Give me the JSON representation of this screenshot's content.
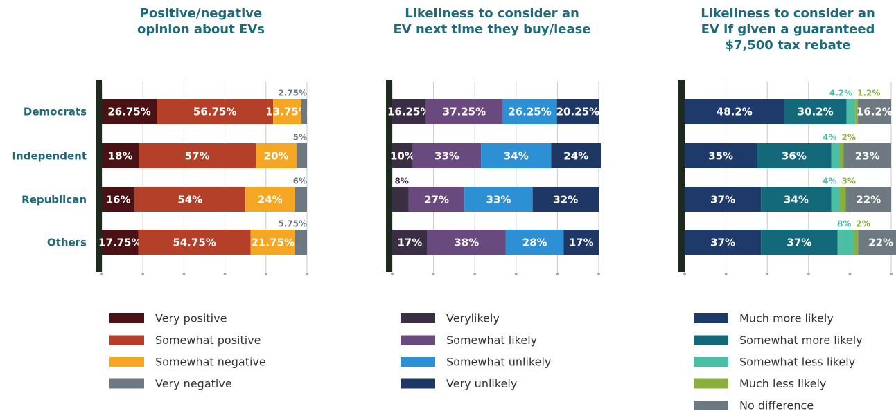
{
  "chart_data": [
    {
      "type": "stacked-bar",
      "title": "Positive/negative\nopinion about EVs",
      "categories": [
        "Democrats",
        "Independent",
        "Republican",
        "Others"
      ],
      "xlim": [
        0,
        100
      ],
      "xticks": [
        0,
        20,
        40,
        60,
        80,
        100
      ],
      "grid": true,
      "series": [
        {
          "name": "Very positive",
          "color": "#4a1214",
          "values": [
            26.75,
            18,
            16,
            17.75
          ],
          "value_labels": [
            "26.75%",
            "18%",
            "16%",
            "17.75%"
          ]
        },
        {
          "name": "Somewhat positive",
          "color": "#b5402a",
          "values": [
            56.75,
            57,
            54,
            54.75
          ],
          "value_labels": [
            "56.75%",
            "57%",
            "54%",
            "54.75%"
          ]
        },
        {
          "name": "Somewhat negative",
          "color": "#f5a623",
          "values": [
            13.75,
            20,
            24,
            21.75
          ],
          "value_labels": [
            "13.75%",
            "20%",
            "24%",
            "21.75%"
          ]
        },
        {
          "name": "Very negative",
          "color": "#6d7880",
          "values": [
            2.75,
            5,
            6,
            5.75
          ],
          "value_labels": [
            "2.75%",
            "5%",
            "6%",
            "5.75%"
          ]
        }
      ]
    },
    {
      "type": "stacked-bar",
      "title": "Likeliness to consider an\nEV next time they buy/lease",
      "categories": [
        null,
        null,
        null,
        null
      ],
      "xlim": [
        0,
        100
      ],
      "xticks": [
        0,
        20,
        40,
        60,
        80,
        100
      ],
      "grid": true,
      "series": [
        {
          "name": "Verylikely",
          "color": "#3a2e45",
          "values": [
            16.25,
            10,
            8,
            17
          ],
          "value_labels": [
            "16.25%",
            "10%",
            "8%",
            "17%"
          ]
        },
        {
          "name": "Somewhat likely",
          "color": "#6a4a7e",
          "values": [
            37.25,
            33,
            27,
            38
          ],
          "value_labels": [
            "37.25%",
            "33%",
            "27%",
            "38%"
          ]
        },
        {
          "name": "Somewhat unlikely",
          "color": "#2d8fd4",
          "values": [
            26.25,
            34,
            33,
            28
          ],
          "value_labels": [
            "26.25%",
            "34%",
            "33%",
            "28%"
          ]
        },
        {
          "name": "Very unlikely",
          "color": "#1e3765",
          "values": [
            20.25,
            24,
            32,
            17
          ],
          "value_labels": [
            "20.25%",
            "24%",
            "32%",
            "17%"
          ]
        }
      ]
    },
    {
      "type": "stacked-bar",
      "title": "Likeliness to consider an\nEV if given a guaranteed\n$7,500 tax rebate",
      "categories": [
        null,
        null,
        null,
        null
      ],
      "xlim": [
        0,
        100
      ],
      "xticks": [
        0,
        20,
        40,
        60,
        80,
        100
      ],
      "grid": true,
      "series": [
        {
          "name": "Much more likely",
          "color": "#1e3a6b",
          "values": [
            48.2,
            35,
            37,
            37
          ],
          "value_labels": [
            "48.2%",
            "35%",
            "37%",
            "37%"
          ]
        },
        {
          "name": "Somewhat more likely",
          "color": "#13697a",
          "values": [
            30.2,
            36,
            34,
            37
          ],
          "value_labels": [
            "30.2%",
            "36%",
            "34%",
            "37%"
          ]
        },
        {
          "name": "Somewhat less likely",
          "color": "#4bbfa5",
          "values": [
            4.2,
            4,
            4,
            8
          ],
          "value_labels": [
            "4.2%",
            "4%",
            "4%",
            "8%"
          ]
        },
        {
          "name": "Much less likely",
          "color": "#8aaf3c",
          "values": [
            1.2,
            2,
            3,
            2
          ],
          "value_labels": [
            "1.2%",
            "2%",
            "3%",
            "2%"
          ]
        },
        {
          "name": "No difference",
          "color": "#6d7880",
          "values": [
            16.2,
            23,
            22,
            22
          ],
          "value_labels": [
            "16.2%",
            "23%",
            "22%",
            "22%"
          ]
        }
      ]
    }
  ]
}
